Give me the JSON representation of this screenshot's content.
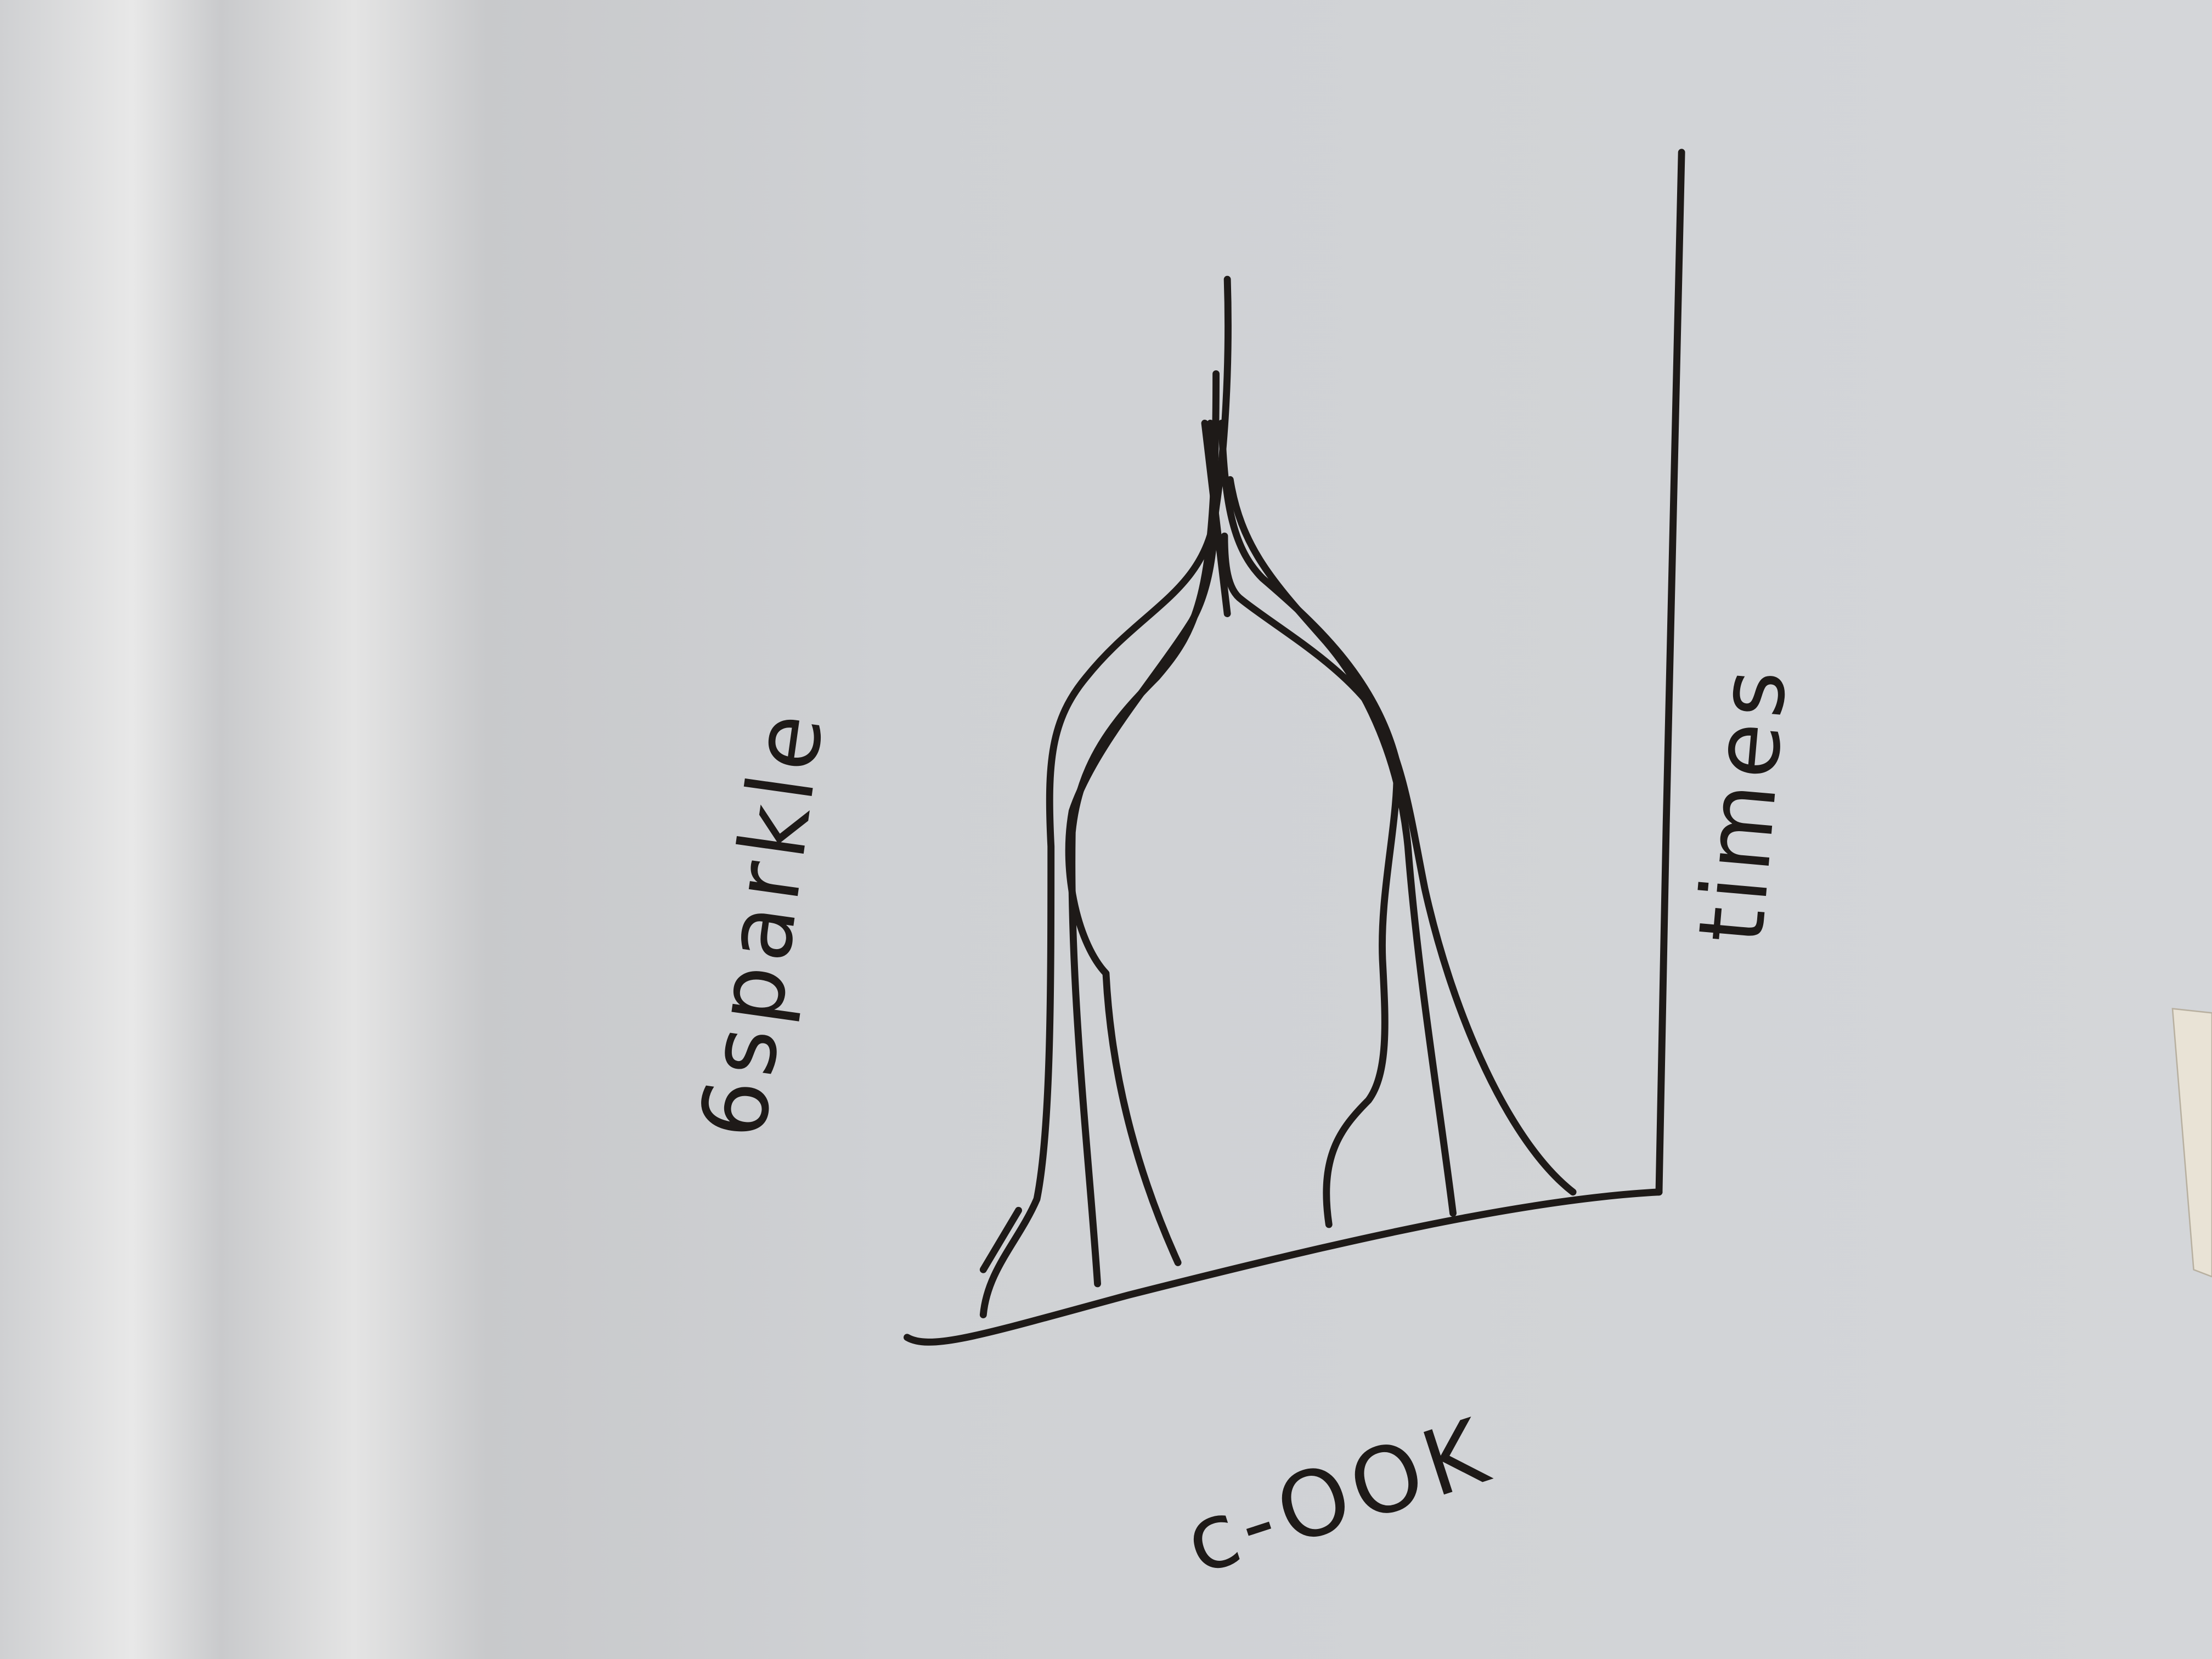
{
  "annotations": {
    "left_label": "6sparkle",
    "right_label": "times",
    "bottom_label": "c-OOK"
  }
}
